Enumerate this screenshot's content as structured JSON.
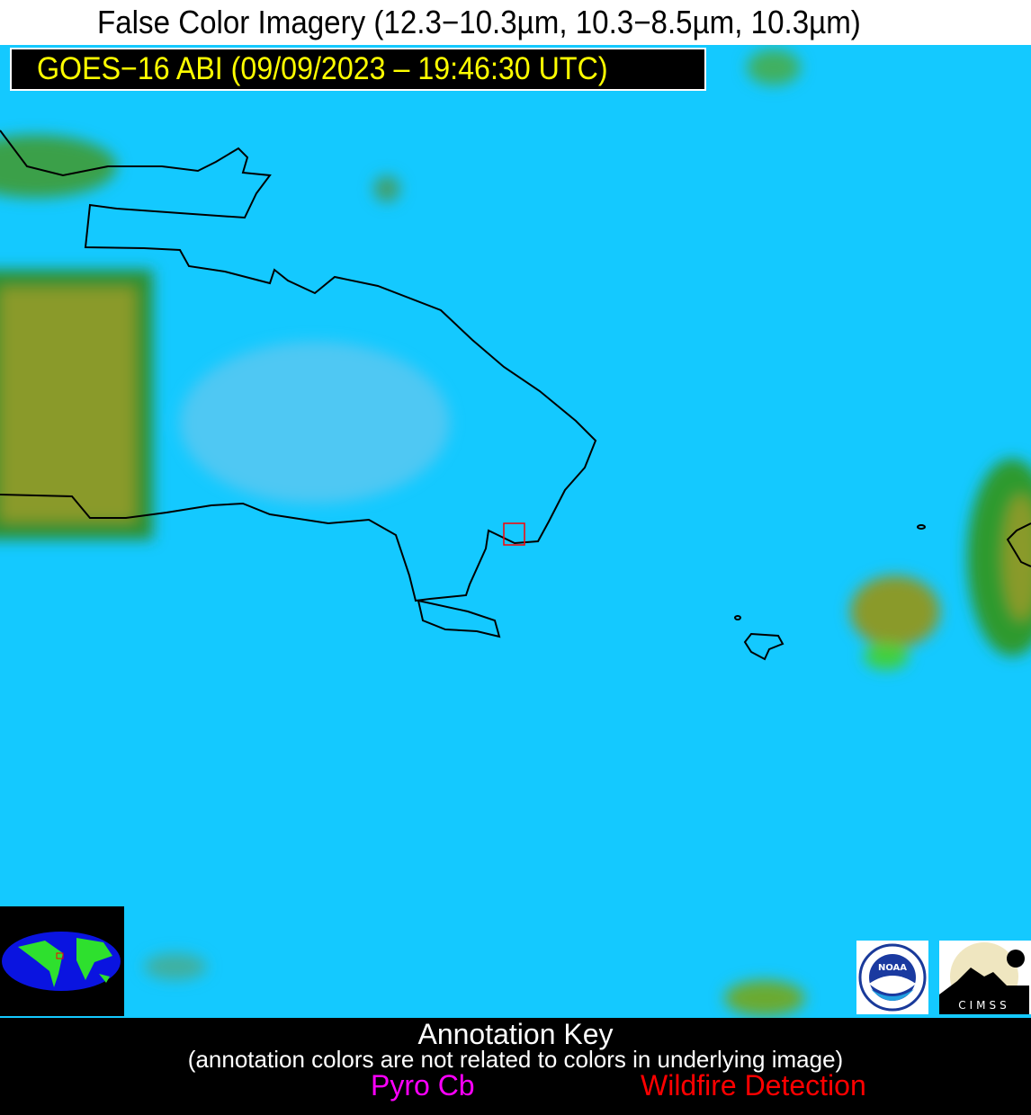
{
  "title": "False Color Imagery (12.3−10.3µm, 10.3−8.5µm, 10.3µm)",
  "satellite_label": "GOES−16 ABI (09/09/2023 – 19:46:30 UTC)",
  "colors": {
    "ocean": "#14c9ff",
    "land_olive": "#8a9a2a",
    "land_green": "#2f9a2f",
    "coastline": "#000000",
    "detection_box": "#ff0000",
    "pyro_cb": "#ff00ff",
    "wildfire": "#ff0000"
  },
  "logos": {
    "noaa": "NOAA",
    "cimss": "CIMSS"
  },
  "annotation_key": {
    "heading": "Annotation Key",
    "subtitle": "(annotation colors are not related to colors in underlying image)",
    "pyro_cb": "Pyro Cb",
    "wildfire": "Wildfire Detection"
  }
}
